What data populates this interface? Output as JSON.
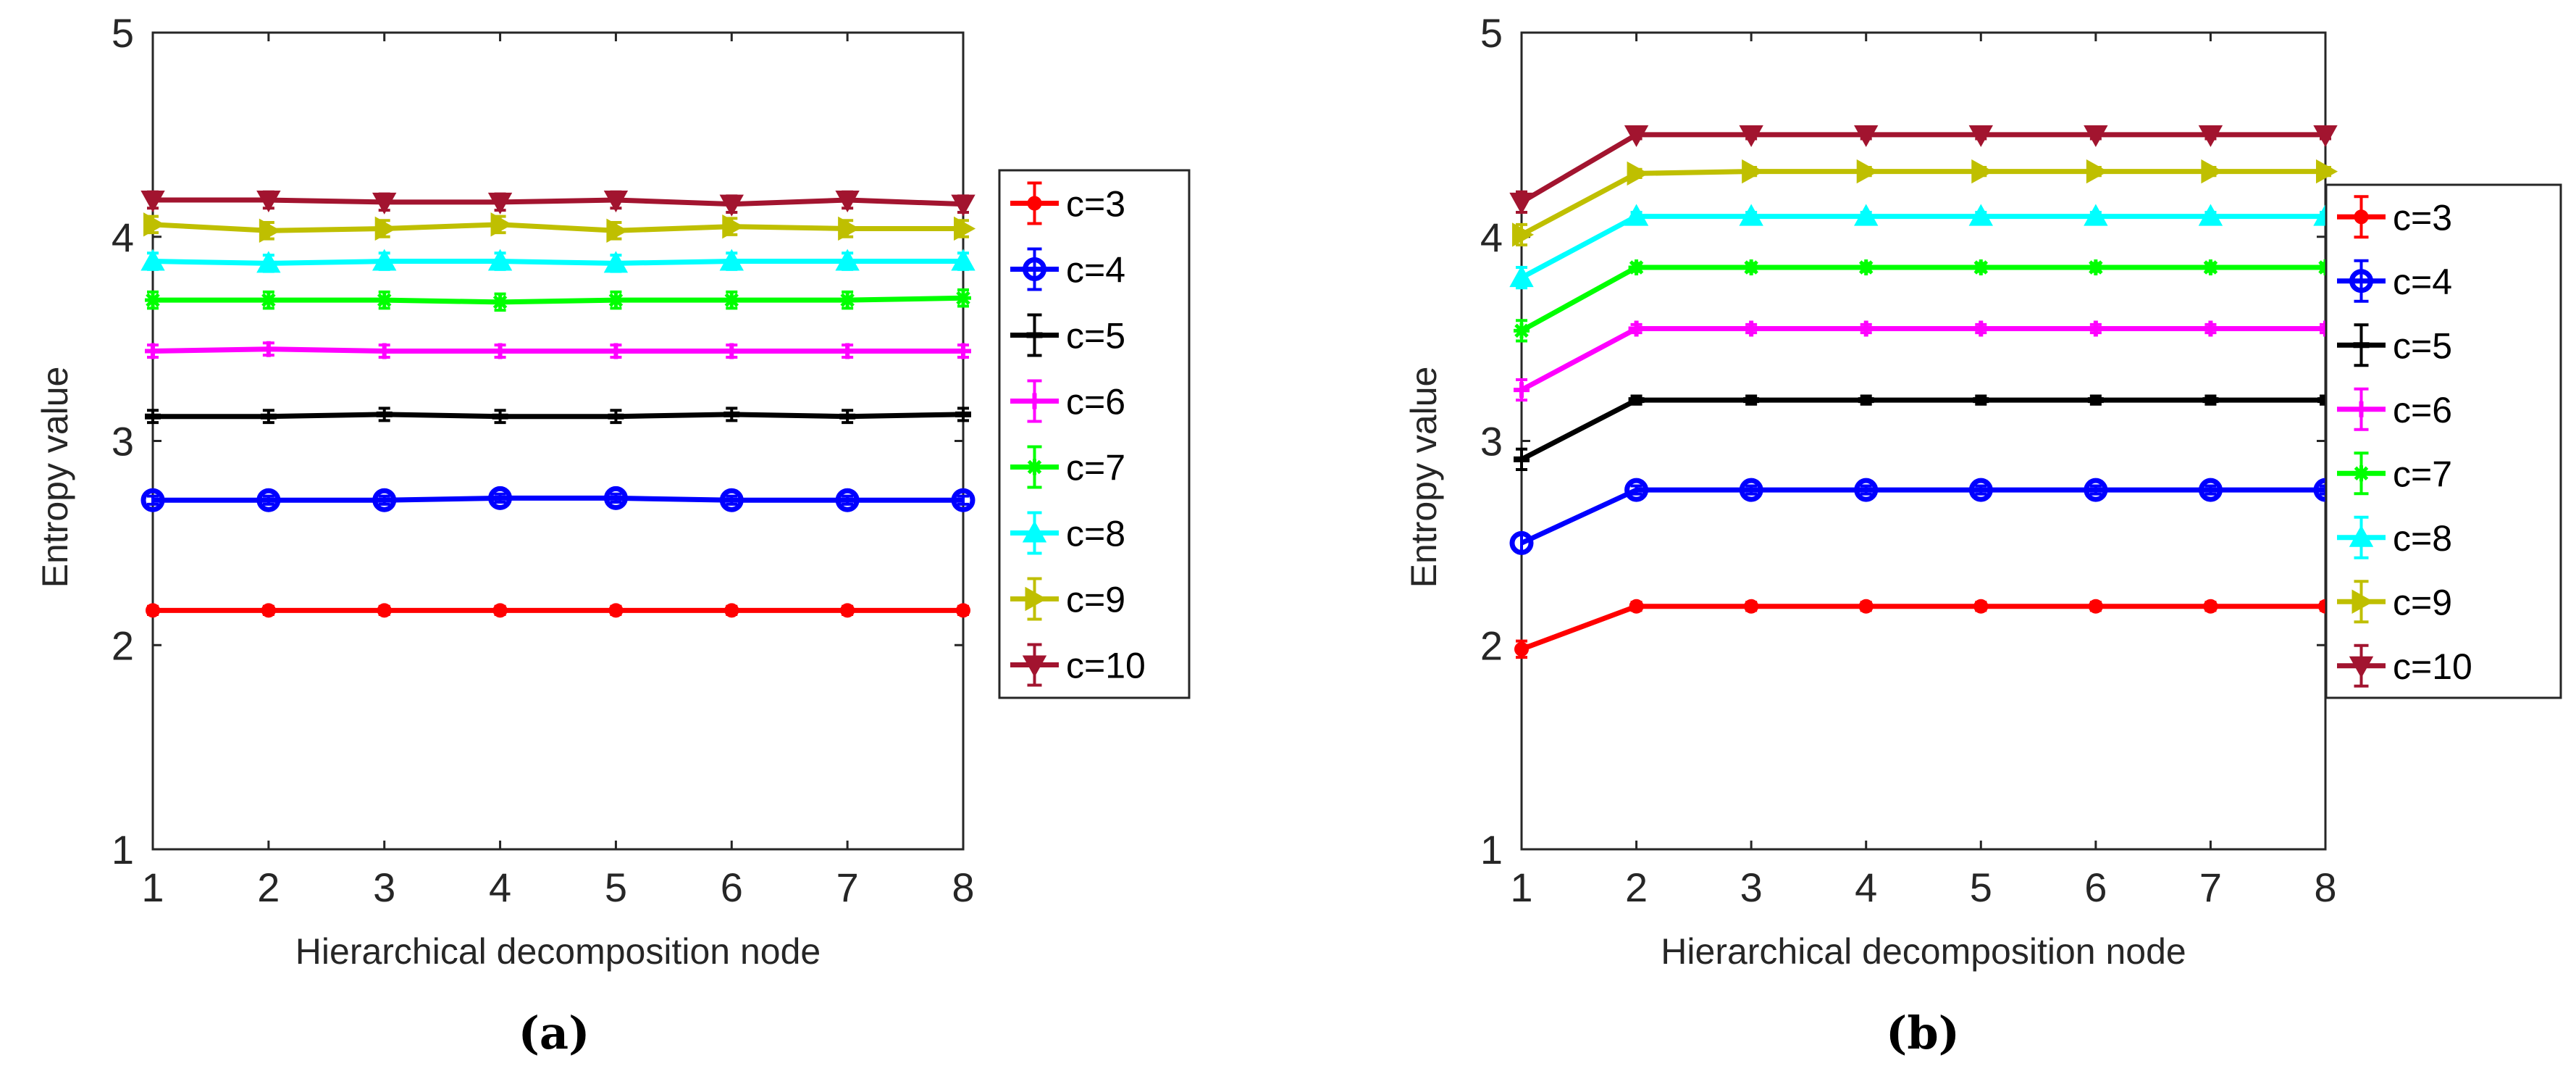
{
  "chart_data": [
    {
      "type": "line",
      "panel_label": "(a)",
      "xlabel": "Hierarchical decomposition node",
      "ylabel": "Entropy value",
      "x": [
        1,
        2,
        3,
        4,
        5,
        6,
        7,
        8
      ],
      "xlim": [
        1,
        8
      ],
      "ylim": [
        1,
        5
      ],
      "xticks": [
        "1",
        "2",
        "3",
        "4",
        "5",
        "6",
        "7",
        "8"
      ],
      "yticks": [
        "1",
        "2",
        "3",
        "4",
        "5"
      ],
      "legend_position": "outside-right",
      "series": [
        {
          "name": "c=3",
          "color": "#ff0000",
          "marker": "circle-small",
          "values": [
            2.17,
            2.17,
            2.17,
            2.17,
            2.17,
            2.17,
            2.17,
            2.17
          ],
          "error": [
            0.02,
            0.02,
            0.02,
            0.02,
            0.02,
            0.02,
            0.02,
            0.02
          ]
        },
        {
          "name": "c=4",
          "color": "#0000ff",
          "marker": "circle",
          "values": [
            2.71,
            2.71,
            2.71,
            2.72,
            2.72,
            2.71,
            2.71,
            2.71
          ],
          "error": [
            0.02,
            0.02,
            0.02,
            0.02,
            0.02,
            0.02,
            0.02,
            0.02
          ]
        },
        {
          "name": "c=5",
          "color": "#000000",
          "marker": "dash",
          "values": [
            3.12,
            3.12,
            3.13,
            3.12,
            3.12,
            3.13,
            3.12,
            3.13
          ],
          "error": [
            0.03,
            0.03,
            0.03,
            0.03,
            0.03,
            0.03,
            0.03,
            0.03
          ]
        },
        {
          "name": "c=6",
          "color": "#ff00ff",
          "marker": "plus",
          "values": [
            3.44,
            3.45,
            3.44,
            3.44,
            3.44,
            3.44,
            3.44,
            3.44
          ],
          "error": [
            0.03,
            0.03,
            0.03,
            0.03,
            0.03,
            0.03,
            0.03,
            0.03
          ]
        },
        {
          "name": "c=7",
          "color": "#00ff00",
          "marker": "asterisk",
          "values": [
            3.69,
            3.69,
            3.69,
            3.68,
            3.69,
            3.69,
            3.69,
            3.7
          ],
          "error": [
            0.04,
            0.04,
            0.04,
            0.04,
            0.04,
            0.04,
            0.04,
            0.04
          ]
        },
        {
          "name": "c=8",
          "color": "#00ffff",
          "marker": "triangle-up",
          "values": [
            3.88,
            3.87,
            3.88,
            3.88,
            3.87,
            3.88,
            3.88,
            3.88
          ],
          "error": [
            0.04,
            0.04,
            0.04,
            0.04,
            0.04,
            0.04,
            0.04,
            0.04
          ]
        },
        {
          "name": "c=9",
          "color": "#bfbf00",
          "marker": "triangle-right",
          "values": [
            4.06,
            4.03,
            4.04,
            4.06,
            4.03,
            4.05,
            4.04,
            4.04
          ],
          "error": [
            0.04,
            0.04,
            0.04,
            0.04,
            0.04,
            0.04,
            0.04,
            0.04
          ]
        },
        {
          "name": "c=10",
          "color": "#a2142f",
          "marker": "triangle-down",
          "values": [
            4.18,
            4.18,
            4.17,
            4.17,
            4.18,
            4.16,
            4.18,
            4.16
          ],
          "error": [
            0.04,
            0.04,
            0.04,
            0.04,
            0.04,
            0.04,
            0.04,
            0.04
          ]
        }
      ]
    },
    {
      "type": "line",
      "panel_label": "(b)",
      "xlabel": "Hierarchical decomposition node",
      "ylabel": "Entropy value",
      "x": [
        1,
        2,
        3,
        4,
        5,
        6,
        7,
        8
      ],
      "xlim": [
        1,
        8
      ],
      "ylim": [
        1,
        5
      ],
      "xticks": [
        "1",
        "2",
        "3",
        "4",
        "5",
        "6",
        "7",
        "8"
      ],
      "yticks": [
        "1",
        "2",
        "3",
        "4",
        "5"
      ],
      "legend_position": "outside-right",
      "series": [
        {
          "name": "c=3",
          "color": "#ff0000",
          "marker": "circle-small",
          "values": [
            1.98,
            2.19,
            2.19,
            2.19,
            2.19,
            2.19,
            2.19,
            2.19
          ],
          "error": [
            0.04,
            0.02,
            0.02,
            0.02,
            0.02,
            0.02,
            0.02,
            0.02
          ]
        },
        {
          "name": "c=4",
          "color": "#0000ff",
          "marker": "circle",
          "values": [
            2.5,
            2.76,
            2.76,
            2.76,
            2.76,
            2.76,
            2.76,
            2.76
          ],
          "error": [
            0.04,
            0.02,
            0.02,
            0.02,
            0.02,
            0.02,
            0.02,
            0.02
          ]
        },
        {
          "name": "c=5",
          "color": "#000000",
          "marker": "dash",
          "values": [
            2.91,
            3.2,
            3.2,
            3.2,
            3.2,
            3.2,
            3.2,
            3.2
          ],
          "error": [
            0.05,
            0.02,
            0.02,
            0.02,
            0.02,
            0.02,
            0.02,
            0.02
          ]
        },
        {
          "name": "c=6",
          "color": "#ff00ff",
          "marker": "plus",
          "values": [
            3.25,
            3.55,
            3.55,
            3.55,
            3.55,
            3.55,
            3.55,
            3.55
          ],
          "error": [
            0.05,
            0.02,
            0.02,
            0.02,
            0.02,
            0.02,
            0.02,
            0.02
          ]
        },
        {
          "name": "c=7",
          "color": "#00ff00",
          "marker": "asterisk",
          "values": [
            3.54,
            3.85,
            3.85,
            3.85,
            3.85,
            3.85,
            3.85,
            3.85
          ],
          "error": [
            0.05,
            0.02,
            0.02,
            0.02,
            0.02,
            0.02,
            0.02,
            0.02
          ]
        },
        {
          "name": "c=8",
          "color": "#00ffff",
          "marker": "triangle-up",
          "values": [
            3.8,
            4.1,
            4.1,
            4.1,
            4.1,
            4.1,
            4.1,
            4.1
          ],
          "error": [
            0.05,
            0.02,
            0.02,
            0.02,
            0.02,
            0.02,
            0.02,
            0.02
          ]
        },
        {
          "name": "c=9",
          "color": "#bfbf00",
          "marker": "triangle-right",
          "values": [
            4.01,
            4.31,
            4.32,
            4.32,
            4.32,
            4.32,
            4.32,
            4.32
          ],
          "error": [
            0.05,
            0.02,
            0.02,
            0.02,
            0.02,
            0.02,
            0.02,
            0.02
          ]
        },
        {
          "name": "c=10",
          "color": "#a2142f",
          "marker": "triangle-down",
          "values": [
            4.17,
            4.5,
            4.5,
            4.5,
            4.5,
            4.5,
            4.5,
            4.5
          ],
          "error": [
            0.05,
            0.02,
            0.02,
            0.02,
            0.02,
            0.02,
            0.02,
            0.02
          ]
        }
      ]
    }
  ]
}
